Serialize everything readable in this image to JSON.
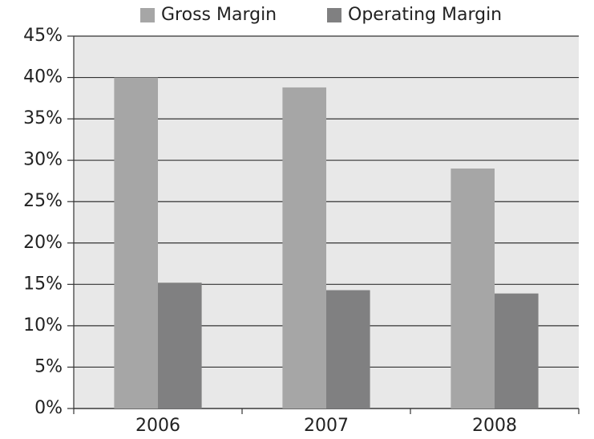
{
  "chart_data": {
    "type": "bar",
    "categories": [
      "2006",
      "2007",
      "2008"
    ],
    "series": [
      {
        "name": "Gross Margin",
        "color": "#a6a6a6",
        "values": [
          40,
          38.8,
          29
        ]
      },
      {
        "name": "Operating Margin",
        "color": "#808081",
        "values": [
          15.2,
          14.3,
          13.9
        ]
      }
    ],
    "ylim": [
      0,
      45
    ],
    "yticks": [
      {
        "value": 0,
        "label": "0%"
      },
      {
        "value": 5,
        "label": "5%"
      },
      {
        "value": 10,
        "label": "10%"
      },
      {
        "value": 15,
        "label": "15%"
      },
      {
        "value": 20,
        "label": "20%"
      },
      {
        "value": 25,
        "label": "25%"
      },
      {
        "value": 30,
        "label": "30%"
      },
      {
        "value": 35,
        "label": "35%"
      },
      {
        "value": 40,
        "label": "40%"
      },
      {
        "value": 45,
        "label": "45%"
      }
    ],
    "grid": true,
    "legend": "top"
  }
}
